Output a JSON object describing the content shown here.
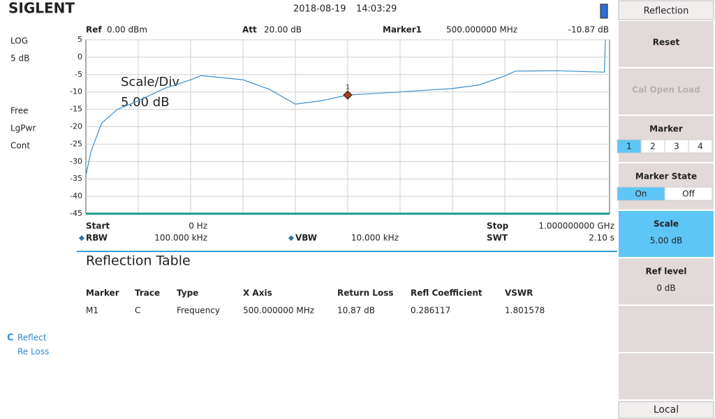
{
  "header": {
    "brand": "SIGLENT",
    "date": "2018-08-19",
    "time": "14:03:29"
  },
  "left_panel": {
    "items": [
      "LOG",
      "5 dB",
      "Free",
      "LgPwr",
      "Cont"
    ],
    "trace_letter": "C",
    "trace_items": [
      "Reflect",
      "Re Loss"
    ]
  },
  "info": {
    "ref_label": "Ref",
    "ref_value": "0.00 dBm",
    "att_label": "Att",
    "att_value": "20.00 dB",
    "marker_label": "Marker1",
    "marker_freq": "500.000000 MHz",
    "marker_level": "-10.87 dB",
    "start_label": "Start",
    "start_value": "0 Hz",
    "stop_label": "Stop",
    "stop_value": "1.000000000 GHz",
    "rbw_label": "RBW",
    "rbw_value": "100.000 kHz",
    "vbw_label": "VBW",
    "vbw_value": "10.000 kHz",
    "swt_label": "SWT",
    "swt_value": "2.10 s"
  },
  "chart_data": {
    "type": "line",
    "annotation": [
      "Scale/Div",
      "5.00 dB"
    ],
    "x": [
      0,
      10,
      30,
      60,
      100,
      150,
      200,
      220,
      300,
      350,
      400,
      450,
      500,
      600,
      700,
      750,
      800,
      820,
      900,
      990,
      992
    ],
    "series": [
      {
        "color": "#3a8fd0",
        "values": [
          -34,
          -27,
          -19,
          -15,
          -12.5,
          -9,
          -6.5,
          -5.3,
          -6.5,
          -9.2,
          -13.5,
          -12.5,
          -10.87,
          -10,
          -9,
          -8,
          -5.4,
          -4,
          -3.9,
          -4.3,
          5
        ]
      }
    ],
    "xlim": [
      0,
      1000
    ],
    "ylim": [
      -45,
      5
    ],
    "yticks": [
      5,
      0,
      -5,
      -10,
      -15,
      -20,
      -25,
      -30,
      -35,
      -40,
      -45
    ],
    "grid": true,
    "marker": {
      "label": "1",
      "x": 500,
      "value": -10.87,
      "color": "#a8401a"
    }
  },
  "table": {
    "title": "Reflection Table",
    "columns": [
      "Marker",
      "Trace",
      "Type",
      "X Axis",
      "Return Loss",
      "Refl Coefficient",
      "VSWR"
    ],
    "rows": [
      [
        "M1",
        "C",
        "Frequency",
        "500.000000 MHz",
        "10.87 dB",
        "0.286117",
        "1.801578"
      ]
    ]
  },
  "softkeys": {
    "title": "Reflection",
    "footer": "Local",
    "keys": [
      {
        "label": "Reset"
      },
      {
        "label": "Cal Open Load",
        "disabled": true
      },
      {
        "label": "Marker",
        "options": [
          "1",
          "2",
          "3",
          "4"
        ],
        "selected": 0
      },
      {
        "label": "Marker State",
        "options": [
          "On",
          "Off"
        ],
        "selected": 0
      },
      {
        "label": "Scale",
        "value": "5.00 dB",
        "active": true
      },
      {
        "label": "Ref level",
        "value": "0 dB"
      },
      {},
      {}
    ]
  }
}
